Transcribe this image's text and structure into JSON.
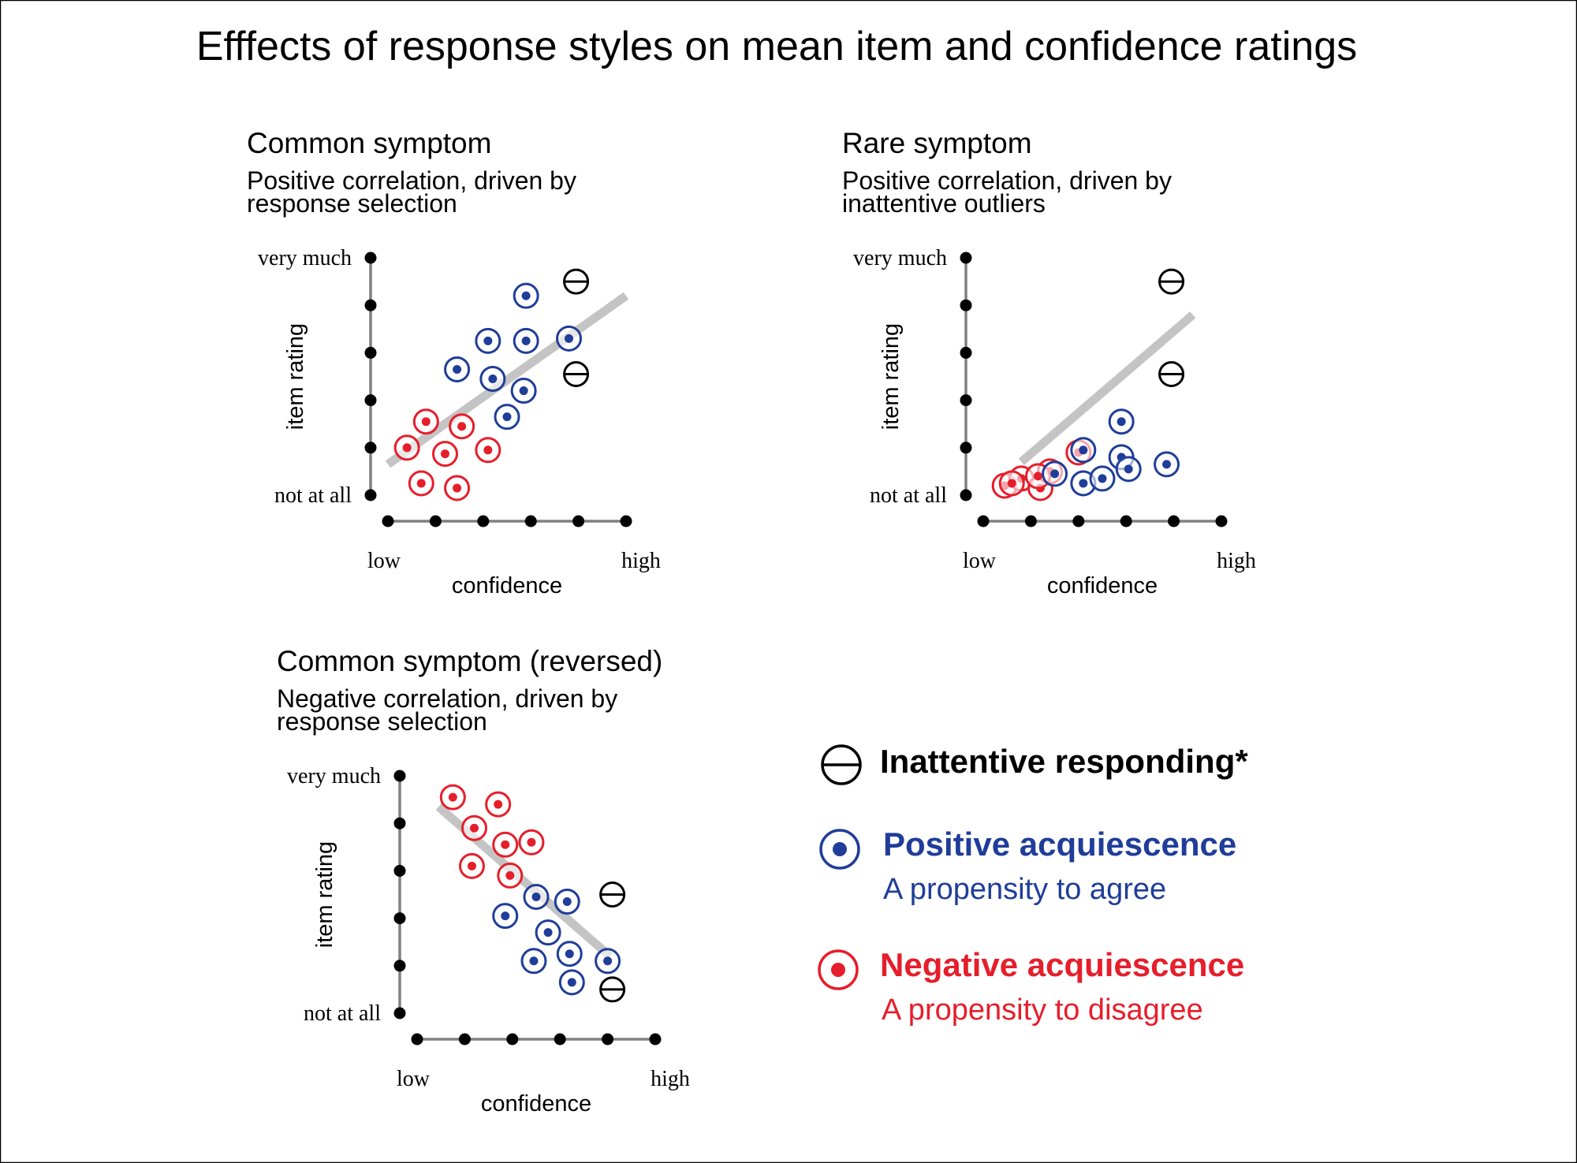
{
  "title": "Efffects of response styles on mean item and confidence ratings",
  "colors": {
    "positive": "#1f3d99",
    "negative": "#e61e2b",
    "inattentive": "#000000",
    "trend": "#c4c4c4",
    "axis": "#808080"
  },
  "chart_data": [
    {
      "type": "scatter",
      "title": "Common symptom",
      "subtitle_line1": "Positive correlation, driven by",
      "subtitle_line2": "response selection",
      "xlabel": "confidence",
      "ylabel": "item rating",
      "x_low": "low",
      "x_high": "high",
      "y_low": "not at all",
      "y_high": "very much",
      "xlim": [
        0,
        5
      ],
      "ylim": [
        0,
        5
      ],
      "trend": [
        [
          0,
          0.65
        ],
        [
          5,
          4.2
        ]
      ],
      "series": [
        {
          "style": "negative",
          "points": [
            [
              0.4,
              1.0
            ],
            [
              0.8,
              1.55
            ],
            [
              1.2,
              0.87
            ],
            [
              1.55,
              1.45
            ],
            [
              2.1,
              0.95
            ],
            [
              0.7,
              0.25
            ],
            [
              1.45,
              0.15
            ]
          ]
        },
        {
          "style": "positive",
          "points": [
            [
              2.9,
              4.2
            ],
            [
              2.1,
              3.25
            ],
            [
              2.9,
              3.25
            ],
            [
              3.8,
              3.3
            ],
            [
              1.45,
              2.65
            ],
            [
              2.2,
              2.45
            ],
            [
              2.85,
              2.2
            ],
            [
              2.5,
              1.65
            ]
          ]
        },
        {
          "style": "inattentive",
          "points": [
            [
              3.95,
              4.5
            ],
            [
              3.95,
              2.55
            ]
          ]
        }
      ]
    },
    {
      "type": "scatter",
      "title": "Rare symptom",
      "subtitle_line1": "Positive correlation, driven by",
      "subtitle_line2": "inattentive outliers",
      "xlabel": "confidence",
      "ylabel": "item rating",
      "x_low": "low",
      "x_high": "high",
      "y_low": "not at all",
      "y_high": "very much",
      "xlim": [
        0,
        5
      ],
      "ylim": [
        0,
        5
      ],
      "trend": [
        [
          0.8,
          0.7
        ],
        [
          4.4,
          3.8
        ]
      ],
      "series": [
        {
          "style": "negative",
          "points": [
            [
              0.45,
              0.2
            ],
            [
              0.8,
              0.35
            ],
            [
              1.2,
              0.15
            ],
            [
              1.4,
              0.5
            ],
            [
              2.0,
              0.9
            ],
            [
              0.6,
              0.25
            ],
            [
              1.15,
              0.4
            ]
          ]
        },
        {
          "style": "positive",
          "points": [
            [
              2.9,
              1.55
            ],
            [
              2.9,
              0.8
            ],
            [
              3.05,
              0.55
            ],
            [
              3.85,
              0.65
            ],
            [
              2.1,
              0.25
            ],
            [
              1.5,
              0.45
            ],
            [
              2.5,
              0.35
            ],
            [
              2.1,
              0.95
            ]
          ]
        },
        {
          "style": "inattentive",
          "points": [
            [
              3.95,
              4.5
            ],
            [
              3.95,
              2.55
            ]
          ]
        }
      ]
    },
    {
      "type": "scatter",
      "title": "Common symptom (reversed)",
      "subtitle_line1": "Negative correlation, driven by",
      "subtitle_line2": "response selection",
      "xlabel": "confidence",
      "ylabel": "item rating",
      "x_low": "low",
      "x_high": "high",
      "y_low": "not at all",
      "y_high": "very much",
      "xlim": [
        0,
        5
      ],
      "ylim": [
        0,
        5
      ],
      "trend": [
        [
          0.45,
          4.35
        ],
        [
          4.05,
          1.2
        ]
      ],
      "series": [
        {
          "style": "negative",
          "points": [
            [
              0.75,
              4.55
            ],
            [
              1.7,
              4.4
            ],
            [
              1.2,
              3.9
            ],
            [
              1.85,
              3.55
            ],
            [
              2.4,
              3.6
            ],
            [
              1.15,
              3.1
            ],
            [
              1.95,
              2.9
            ]
          ]
        },
        {
          "style": "positive",
          "points": [
            [
              2.5,
              2.45
            ],
            [
              3.15,
              2.35
            ],
            [
              1.85,
              2.05
            ],
            [
              2.75,
              1.7
            ],
            [
              3.2,
              1.25
            ],
            [
              2.45,
              1.1
            ],
            [
              4.0,
              1.1
            ],
            [
              3.25,
              0.65
            ]
          ]
        },
        {
          "style": "inattentive",
          "points": [
            [
              4.1,
              2.5
            ],
            [
              4.1,
              0.5
            ]
          ]
        }
      ]
    }
  ],
  "legend": {
    "inattentive_label": "Inattentive responding*",
    "positive_label": "Positive acquiescence",
    "positive_desc": "A propensity to agree",
    "negative_label": "Negative acquiescence",
    "negative_desc": "A propensity to disagree"
  }
}
